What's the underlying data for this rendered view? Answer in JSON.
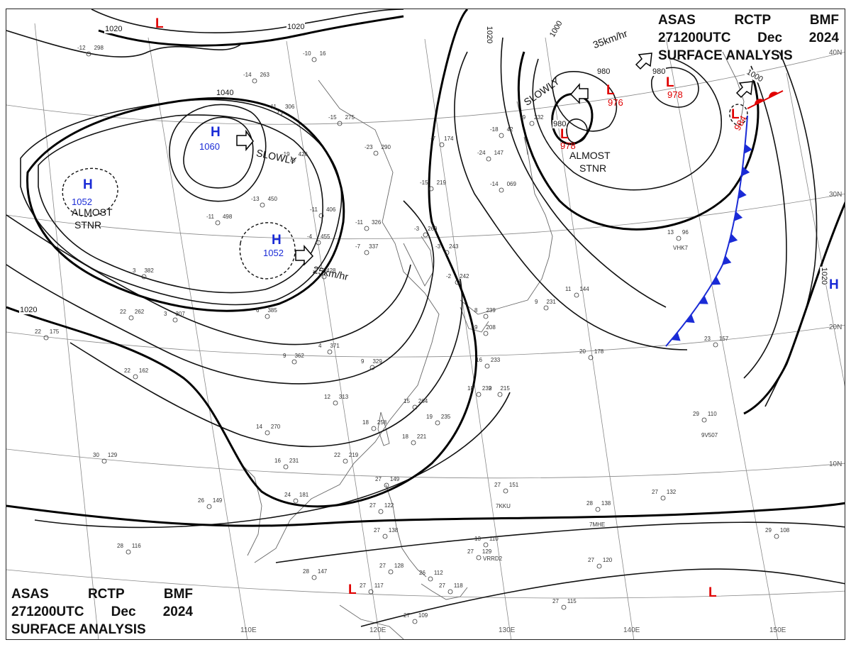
{
  "title": {
    "line1": [
      "ASAS",
      "RCTP",
      "BMF"
    ],
    "line2": [
      "271200UTC",
      "Dec",
      "2024"
    ],
    "line3": "SURFACE ANALYSIS"
  },
  "colors": {
    "high": "#1a2bd6",
    "low": "#e00000",
    "cold_front": "#1a2bd6",
    "warm_front": "#e00000",
    "isobar": "#111111",
    "grid": "#888888",
    "coast": "#666666"
  },
  "systems": [
    {
      "type": "H",
      "pressure": "1060",
      "motion": "SLOWLY"
    },
    {
      "type": "H",
      "pressure": "1052",
      "motion": "ALMOST STNR"
    },
    {
      "type": "H",
      "pressure": "1052",
      "motion": "25km/hr"
    },
    {
      "type": "L",
      "pressure": "978",
      "motion": "ALMOST STNR"
    },
    {
      "type": "L",
      "pressure": "976",
      "motion": "SLOWLY"
    },
    {
      "type": "L",
      "pressure": "978",
      "motion": ""
    },
    {
      "type": "L",
      "pressure": "984",
      "motion": "35km/hr"
    },
    {
      "type": "H",
      "pressure": "",
      "motion": ""
    },
    {
      "type": "L",
      "pressure": "",
      "motion": ""
    },
    {
      "type": "L",
      "pressure": "",
      "motion": ""
    },
    {
      "type": "L",
      "pressure": "",
      "motion": ""
    }
  ],
  "isobar_labels": [
    "1020",
    "1020",
    "1040",
    "1020",
    "1020",
    "1000",
    "1000",
    "980",
    "980",
    "980",
    "1020"
  ],
  "motion_labels": {
    "slowly": "SLOWLY",
    "almost": "ALMOST",
    "stnr": "STNR",
    "speed_25": "25km/hr",
    "speed_35": "35km/hr"
  },
  "grid_labels": {
    "lon": [
      "110E",
      "120E",
      "130E",
      "140E",
      "150E"
    ],
    "lat": [
      "40N",
      "30N",
      "20N",
      "10N"
    ]
  },
  "stations": [
    {
      "t": "-12",
      "p": "298"
    },
    {
      "t": "-10",
      "p": "16"
    },
    {
      "t": "-14",
      "p": "263"
    },
    {
      "t": "-11",
      "p": "306"
    },
    {
      "t": "-15",
      "p": "275"
    },
    {
      "t": "-23",
      "p": "290"
    },
    {
      "t": "-19",
      "p": "426"
    },
    {
      "t": "-13",
      "p": "450"
    },
    {
      "t": "-11",
      "p": "498"
    },
    {
      "t": "-11",
      "p": "406"
    },
    {
      "t": "-11",
      "p": "326"
    },
    {
      "t": "-4",
      "p": "455"
    },
    {
      "t": "-7",
      "p": "337"
    },
    {
      "t": "-7",
      "p": "174"
    },
    {
      "t": "-15",
      "p": "219"
    },
    {
      "t": "-14",
      "p": "069"
    },
    {
      "t": "-24",
      "p": "147"
    },
    {
      "t": "-18",
      "p": "42"
    },
    {
      "t": "-9",
      "p": "232"
    },
    {
      "t": "-3",
      "p": "269"
    },
    {
      "t": "-3",
      "p": "243"
    },
    {
      "t": "-2",
      "p": "242"
    },
    {
      "t": "-2",
      "p": "428"
    },
    {
      "t": "3",
      "p": "382"
    },
    {
      "t": "3",
      "p": "307"
    },
    {
      "t": "6",
      "p": "385"
    },
    {
      "t": "4",
      "p": "371"
    },
    {
      "t": "9",
      "p": "362"
    },
    {
      "t": "9",
      "p": "329"
    },
    {
      "t": "12",
      "p": "313"
    },
    {
      "t": "14",
      "p": "270"
    },
    {
      "t": "18",
      "p": "258"
    },
    {
      "t": "15",
      "p": "264"
    },
    {
      "t": "19",
      "p": "235"
    },
    {
      "t": "18",
      "p": "221"
    },
    {
      "t": "16",
      "p": "233"
    },
    {
      "t": "18",
      "p": "232"
    },
    {
      "t": "9",
      "p": "215"
    },
    {
      "t": "9",
      "p": "208"
    },
    {
      "t": "8",
      "p": "239"
    },
    {
      "t": "11",
      "p": "144"
    },
    {
      "t": "9",
      "p": "231"
    },
    {
      "t": "22",
      "p": "175"
    },
    {
      "t": "22",
      "p": "162"
    },
    {
      "t": "22",
      "p": "262"
    },
    {
      "t": "16",
      "p": "231"
    },
    {
      "t": "22",
      "p": "219"
    },
    {
      "t": "30",
      "p": "129"
    },
    {
      "t": "26",
      "p": "149"
    },
    {
      "t": "24",
      "p": "181"
    },
    {
      "t": "27",
      "p": "149"
    },
    {
      "t": "27",
      "p": "122"
    },
    {
      "t": "27",
      "p": "138"
    },
    {
      "t": "27",
      "p": "128"
    },
    {
      "t": "27",
      "p": "118"
    },
    {
      "t": "27",
      "p": "117"
    },
    {
      "t": "27",
      "p": "109"
    },
    {
      "t": "27",
      "p": "151"
    },
    {
      "t": "28",
      "p": "138"
    },
    {
      "t": "27",
      "p": "132"
    },
    {
      "t": "27",
      "p": "120"
    },
    {
      "t": "27",
      "p": "115"
    },
    {
      "t": "28",
      "p": "116"
    },
    {
      "t": "28",
      "p": "147"
    },
    {
      "t": "29",
      "p": "110"
    },
    {
      "t": "29",
      "p": "108"
    },
    {
      "t": "23",
      "p": "157"
    },
    {
      "t": "20",
      "p": "178"
    },
    {
      "t": "13",
      "p": "96"
    },
    {
      "t": "27",
      "p": "129"
    },
    {
      "t": "26",
      "p": "112"
    },
    {
      "t": "13",
      "p": "110"
    }
  ],
  "ship_ids": [
    "VHK7",
    "7KKU",
    "7MHE",
    "VRRD2",
    "9V507"
  ]
}
